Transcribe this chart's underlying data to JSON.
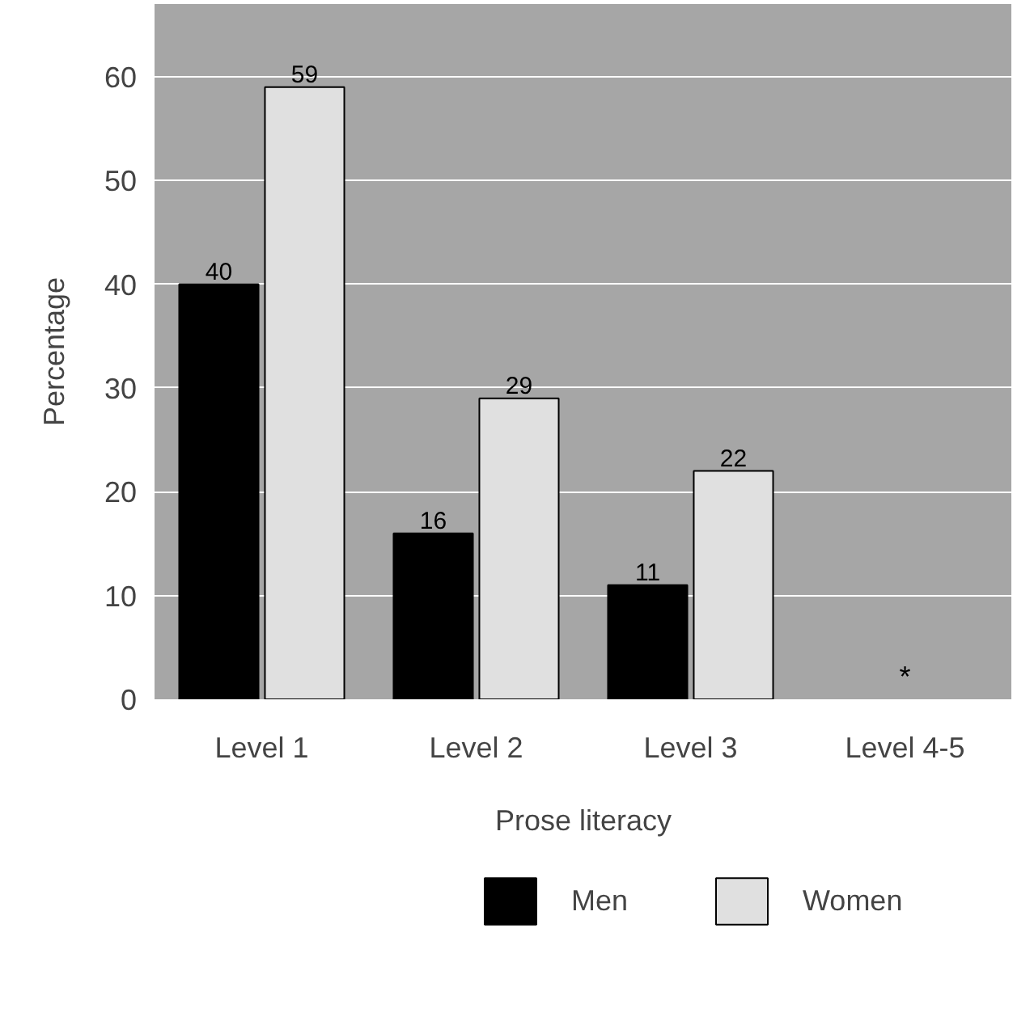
{
  "chart_data": {
    "type": "bar",
    "xlabel": "Prose literacy",
    "ylabel": "Percentage",
    "categories": [
      "Level 1",
      "Level 2",
      "Level 3",
      "Level 4-5"
    ],
    "series": [
      {
        "name": "Men",
        "color": "#000000",
        "values": [
          40,
          16,
          11,
          null
        ]
      },
      {
        "name": "Women",
        "color": "#e0e0e0",
        "values": [
          59,
          29,
          22,
          null
        ]
      }
    ],
    "ylim": [
      0,
      67
    ],
    "yticks": [
      0,
      10,
      20,
      30,
      40,
      50,
      60
    ],
    "grid": "y",
    "data_labels": true,
    "legend": "bottom",
    "annotations": [
      "*"
    ]
  }
}
